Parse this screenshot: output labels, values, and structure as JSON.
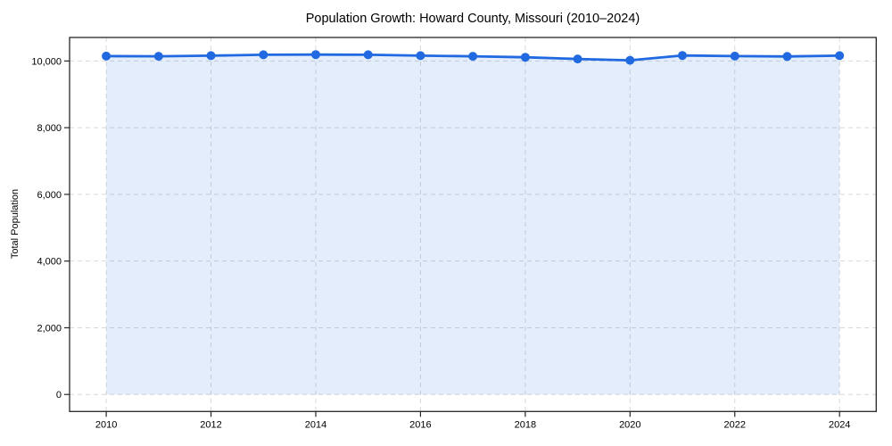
{
  "chart_data": {
    "type": "area",
    "title": "Population Growth: Howard County, Missouri (2010–2024)",
    "xlabel": "",
    "ylabel": "Total Population",
    "x": [
      2010,
      2011,
      2012,
      2013,
      2014,
      2015,
      2016,
      2017,
      2018,
      2019,
      2020,
      2021,
      2022,
      2023,
      2024
    ],
    "values": [
      10145,
      10140,
      10160,
      10185,
      10192,
      10187,
      10160,
      10140,
      10110,
      10060,
      10020,
      10165,
      10145,
      10135,
      10160
    ],
    "xlim": [
      2009.3,
      2024.7
    ],
    "ylim": [
      -510,
      10705
    ],
    "xticks": {
      "values": [
        2010,
        2012,
        2014,
        2016,
        2018,
        2020,
        2022,
        2024
      ],
      "labels": [
        "2010",
        "2012",
        "2014",
        "2016",
        "2018",
        "2020",
        "2022",
        "2024"
      ]
    },
    "yticks": {
      "values": [
        0,
        2000,
        4000,
        6000,
        8000,
        10000
      ],
      "labels": [
        "0",
        "2,000",
        "4,000",
        "6,000",
        "8,000",
        "10,000"
      ]
    },
    "grid": true,
    "grid_style": "dashed",
    "legend": false,
    "marker": "circle",
    "colors": {
      "line": "#2169e0",
      "marker": "#2169e0",
      "fill": "rgba(33,105,224,0.12)",
      "grid": "#d8d8d8",
      "spine": "#262626",
      "text": "#000000",
      "background": "#ffffff"
    }
  }
}
